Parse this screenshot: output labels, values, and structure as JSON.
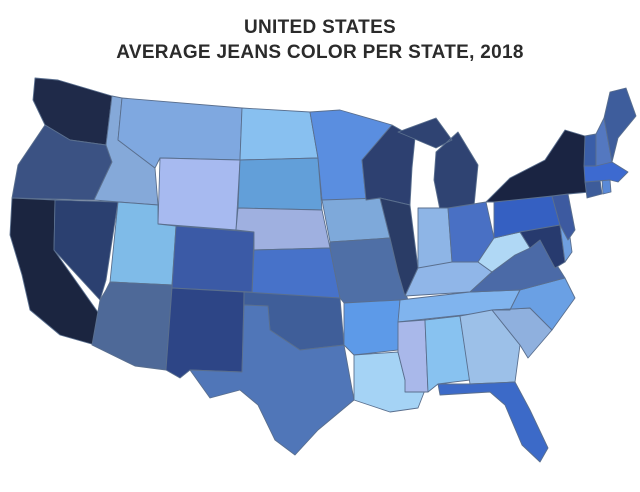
{
  "title": {
    "line1": "UNITED STATES",
    "line2": "AVERAGE JEANS COLOR PER STATE, 2018"
  },
  "legend": [],
  "states": [
    {
      "code": "WA",
      "color": "#1f2a49"
    },
    {
      "code": "OR",
      "color": "#3b5283"
    },
    {
      "code": "CA",
      "color": "#1b2540"
    },
    {
      "code": "ID",
      "color": "#85a9d9"
    },
    {
      "code": "NV",
      "color": "#2b4070"
    },
    {
      "code": "MT",
      "color": "#7fa8e0"
    },
    {
      "code": "WY",
      "color": "#a7baf0"
    },
    {
      "code": "UT",
      "color": "#7fbbe8"
    },
    {
      "code": "AZ",
      "color": "#4e6998"
    },
    {
      "code": "CO",
      "color": "#3b5aa6"
    },
    {
      "code": "NM",
      "color": "#2d4586"
    },
    {
      "code": "ND",
      "color": "#88c0f0"
    },
    {
      "code": "SD",
      "color": "#629fd9"
    },
    {
      "code": "NE",
      "color": "#9fb0e0"
    },
    {
      "code": "KS",
      "color": "#4772c9"
    },
    {
      "code": "OK",
      "color": "#3f5e99"
    },
    {
      "code": "TX",
      "color": "#5076b8"
    },
    {
      "code": "MN",
      "color": "#5a8ee0"
    },
    {
      "code": "IA",
      "color": "#7ea9da"
    },
    {
      "code": "MO",
      "color": "#4f6fa6"
    },
    {
      "code": "AR",
      "color": "#5d9ae8"
    },
    {
      "code": "LA",
      "color": "#a5d3f5"
    },
    {
      "code": "WI",
      "color": "#2d4070"
    },
    {
      "code": "IL",
      "color": "#2a3c66"
    },
    {
      "code": "MI",
      "color": "#2f4372"
    },
    {
      "code": "IN",
      "color": "#8eb5e6"
    },
    {
      "code": "OH",
      "color": "#4970c4"
    },
    {
      "code": "KY",
      "color": "#90b6e8"
    },
    {
      "code": "TN",
      "color": "#80b4ee"
    },
    {
      "code": "MS",
      "color": "#a9b8ea"
    },
    {
      "code": "AL",
      "color": "#88c2f0"
    },
    {
      "code": "GA",
      "color": "#9cc0e8"
    },
    {
      "code": "FL",
      "color": "#3c6ac8"
    },
    {
      "code": "SC",
      "color": "#8fb0de"
    },
    {
      "code": "NC",
      "color": "#6aa0e4"
    },
    {
      "code": "VA",
      "color": "#4b6aa7"
    },
    {
      "code": "WV",
      "color": "#b0d8f5"
    },
    {
      "code": "PA",
      "color": "#3560c2"
    },
    {
      "code": "NY",
      "color": "#1a2442"
    },
    {
      "code": "NJ",
      "color": "#3d5aa0"
    },
    {
      "code": "MD",
      "color": "#273a6e"
    },
    {
      "code": "DE",
      "color": "#6f9fe0"
    },
    {
      "code": "CT",
      "color": "#3d5c9a"
    },
    {
      "code": "RI",
      "color": "#5a8ad8"
    },
    {
      "code": "MA",
      "color": "#3d6ad0"
    },
    {
      "code": "VT",
      "color": "#3a5ea8"
    },
    {
      "code": "NH",
      "color": "#5478c0"
    },
    {
      "code": "ME",
      "color": "#3e5d9c"
    }
  ]
}
